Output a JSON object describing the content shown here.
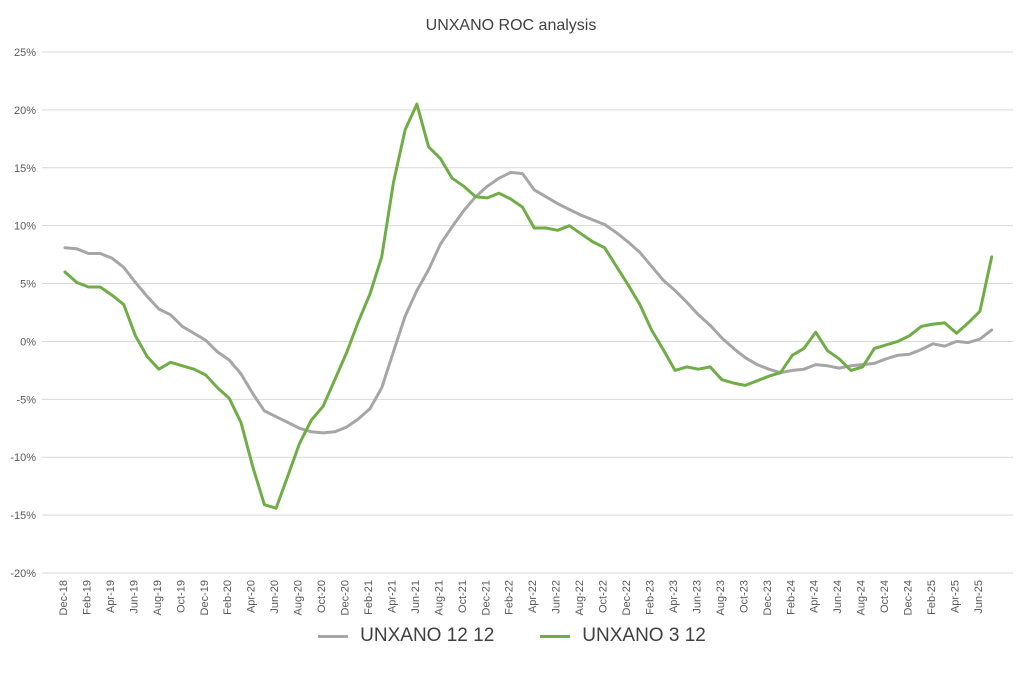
{
  "chart_data": {
    "type": "line",
    "title": "UNXANO ROC analysis",
    "xlabel": "",
    "ylabel": "",
    "ylim": [
      -20,
      25
    ],
    "y_ticks": [
      "25%",
      "20%",
      "15%",
      "10%",
      "5%",
      "0%",
      "-5%",
      "-10%",
      "-15%",
      "-20%"
    ],
    "y_tick_values": [
      25,
      20,
      15,
      10,
      5,
      0,
      -5,
      -10,
      -15,
      -20
    ],
    "x_tick_labels": [
      "Dec-18",
      "Feb-19",
      "Apr-19",
      "Jun-19",
      "Aug-19",
      "Oct-19",
      "Dec-19",
      "Feb-20",
      "Apr-20",
      "Jun-20",
      "Aug-20",
      "Oct-20",
      "Dec-20",
      "Feb-21",
      "Apr-21",
      "Jun-21",
      "Aug-21",
      "Oct-21",
      "Dec-21",
      "Feb-22",
      "Apr-22",
      "Jun-22",
      "Aug-22",
      "Oct-22",
      "Dec-22",
      "Feb-23",
      "Apr-23",
      "Jun-23",
      "Aug-23",
      "Oct-23",
      "Dec-23",
      "Feb-24",
      "Apr-24",
      "Jun-24",
      "Aug-24",
      "Oct-24",
      "Dec-24",
      "Feb-25",
      "Apr-25",
      "Jun-25"
    ],
    "grid": true,
    "legend_position": "bottom",
    "series": [
      {
        "name": "UNXANO 12 12",
        "color": "#a6a6a6",
        "values": [
          8.1,
          8.0,
          7.6,
          7.6,
          7.2,
          6.4,
          5.1,
          3.9,
          2.8,
          2.3,
          1.3,
          0.7,
          0.1,
          -0.9,
          -1.6,
          -2.8,
          -4.5,
          -6.0,
          -6.5,
          -7.0,
          -7.5,
          -7.8,
          -7.9,
          -7.8,
          -7.4,
          -6.7,
          -5.8,
          -4.0,
          -0.9,
          2.2,
          4.4,
          6.2,
          8.4,
          9.9,
          11.3,
          12.5,
          13.4,
          14.1,
          14.6,
          14.5,
          13.1,
          12.5,
          11.9,
          11.4,
          10.9,
          10.5,
          10.1,
          9.4,
          8.6,
          7.7,
          6.5,
          5.3,
          4.4,
          3.4,
          2.3,
          1.4,
          0.3,
          -0.6,
          -1.4,
          -2.0,
          -2.4,
          -2.7,
          -2.5,
          -2.4,
          -2.0,
          -2.1,
          -2.3,
          -2.1,
          -2.0,
          -1.9,
          -1.5,
          -1.2,
          -1.1,
          -0.7,
          -0.2,
          -0.4,
          0.0,
          -0.1,
          0.2,
          1.0
        ]
      },
      {
        "name": "UNXANO 3 12",
        "color": "#70ad47",
        "values": [
          6.0,
          5.1,
          4.7,
          4.7,
          4.0,
          3.2,
          0.5,
          -1.3,
          -2.4,
          -1.8,
          -2.1,
          -2.4,
          -2.9,
          -4.0,
          -4.9,
          -7.0,
          -10.8,
          -14.1,
          -14.4,
          -11.6,
          -8.8,
          -6.8,
          -5.6,
          -3.3,
          -1.0,
          1.7,
          4.1,
          7.3,
          13.7,
          18.3,
          20.5,
          16.8,
          15.8,
          14.1,
          13.4,
          12.5,
          12.4,
          12.8,
          12.3,
          11.6,
          9.8,
          9.8,
          9.6,
          10.0,
          9.3,
          8.6,
          8.1,
          6.5,
          4.9,
          3.2,
          1.0,
          -0.7,
          -2.5,
          -2.2,
          -2.4,
          -2.2,
          -3.3,
          -3.6,
          -3.8,
          -3.4,
          -3.0,
          -2.7,
          -1.2,
          -0.6,
          0.8,
          -0.8,
          -1.5,
          -2.5,
          -2.2,
          -0.6,
          -0.3,
          0.0,
          0.5,
          1.3,
          1.5,
          1.6,
          0.7,
          1.6,
          2.6,
          7.3
        ]
      }
    ]
  }
}
